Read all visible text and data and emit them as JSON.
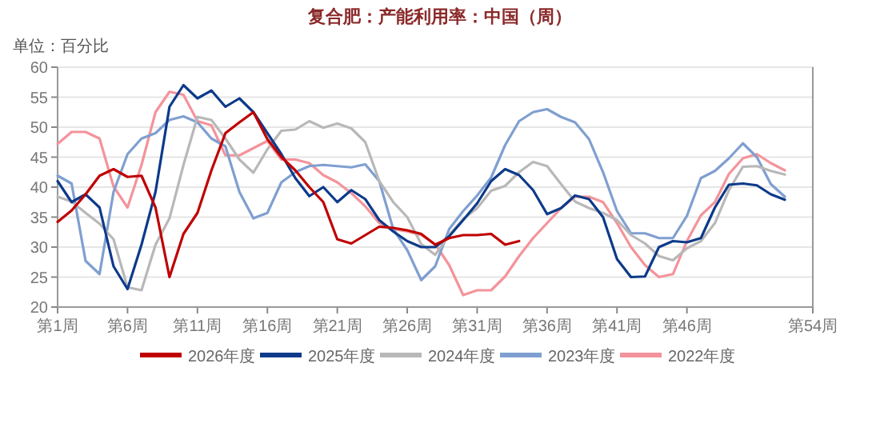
{
  "chart_data": {
    "type": "line",
    "title": "复合肥：产能利用率：中国（周）",
    "subtitle": "单位：百分比",
    "categories": [
      "第1周",
      null,
      null,
      null,
      null,
      "第6周",
      null,
      null,
      null,
      null,
      "第11周",
      null,
      null,
      null,
      null,
      "第16周",
      null,
      null,
      null,
      null,
      "第21周",
      null,
      null,
      null,
      null,
      "第26周",
      null,
      null,
      null,
      null,
      "第31周",
      null,
      null,
      null,
      null,
      "第36周",
      null,
      null,
      null,
      null,
      "第41周",
      null,
      null,
      null,
      null,
      "第46周",
      null,
      null,
      null,
      null,
      null,
      null,
      null,
      null,
      "第54周"
    ],
    "ylim": [
      20,
      60
    ],
    "yticks": [
      20,
      25,
      30,
      35,
      40,
      45,
      50,
      55,
      60
    ],
    "grid": "y",
    "legend": "bottom",
    "series": [
      {
        "name": "2026年度",
        "color": "#c00000",
        "values": [
          34.2,
          36.1,
          38.8,
          41.9,
          43,
          41.7,
          41.9,
          36.6,
          25,
          32.2,
          35.7,
          42.8,
          49,
          50.8,
          52.5,
          48,
          45,
          42.8,
          40,
          37.5,
          31.3,
          30.6,
          32,
          33.4,
          33.2,
          32.8,
          32.2,
          30.4,
          31.5,
          32,
          32,
          32.2,
          30.4,
          31,
          null,
          null,
          null,
          null,
          null,
          null,
          null,
          null,
          null,
          null,
          null,
          null,
          null,
          null,
          null,
          null,
          null,
          null,
          null,
          null,
          null
        ]
      },
      {
        "name": "2025年度",
        "color": "#0d3a8a",
        "values": [
          41,
          37.5,
          38.8,
          36.6,
          26.8,
          23,
          30.4,
          39.2,
          53.4,
          57,
          54.8,
          56.1,
          53.4,
          54.8,
          52.5,
          49,
          45.5,
          41.5,
          38.5,
          40,
          37.5,
          39.5,
          38,
          34.5,
          32.6,
          31,
          30,
          30,
          31.8,
          34.5,
          37.3,
          41,
          43,
          42,
          39.5,
          35.5,
          36.5,
          38.6,
          38,
          35,
          28,
          25,
          25.1,
          30,
          31,
          30.8,
          31.5,
          36.6,
          40.4,
          40.6,
          40.3,
          38.8,
          37.9,
          null,
          null
        ]
      },
      {
        "name": "2024年度",
        "color": "#b8b8b8",
        "values": [
          38.4,
          37.6,
          35.7,
          33.9,
          31.3,
          23.3,
          22.8,
          30.4,
          34.8,
          43.7,
          51.7,
          51.2,
          48.1,
          44.6,
          42.4,
          46.3,
          49.4,
          49.6,
          51,
          49.9,
          50.6,
          49.8,
          47.5,
          41,
          37.5,
          35,
          30.5,
          28.7,
          32,
          34.7,
          36.5,
          39.4,
          40.2,
          42.5,
          44.2,
          43.5,
          40.5,
          37.6,
          36.5,
          35.7,
          34.5,
          32,
          30.6,
          28.5,
          27.8,
          29.8,
          31,
          34,
          39.5,
          43.4,
          43.5,
          42.7,
          42.1,
          null,
          null
        ]
      },
      {
        "name": "2023年度",
        "color": "#7f9fd0",
        "values": [
          41.9,
          40.6,
          27.7,
          25.5,
          39.2,
          45.5,
          48.1,
          49,
          51.2,
          51.8,
          50.8,
          48.1,
          46.8,
          39.2,
          34.8,
          35.7,
          40.8,
          42.5,
          43.5,
          43.7,
          43.5,
          43.3,
          43.8,
          41,
          33,
          29.5,
          24.5,
          26.8,
          33,
          36,
          38.6,
          41.6,
          47,
          51,
          52.5,
          53,
          51.7,
          50.8,
          48,
          42.5,
          36,
          32.3,
          32.3,
          31.5,
          31.5,
          35.2,
          41.5,
          42.7,
          44.8,
          47.3,
          45,
          40.5,
          38.4,
          null,
          null
        ]
      },
      {
        "name": "2022年度",
        "color": "#f4939b",
        "values": [
          47.2,
          49.2,
          49.2,
          48.1,
          40.1,
          36.6,
          43.7,
          52.5,
          55.9,
          55.4,
          51,
          50.3,
          45.3,
          45.3,
          46.5,
          47.7,
          44.6,
          44.6,
          44,
          42,
          40.8,
          39,
          36.8,
          34,
          33,
          32.6,
          32,
          30.5,
          27,
          22,
          22.8,
          22.8,
          25.1,
          28.5,
          31.5,
          34,
          36.5,
          38.4,
          38.4,
          37.5,
          34,
          30,
          27,
          25,
          25.5,
          31,
          35.3,
          37.5,
          42.2,
          44.8,
          45.5,
          44,
          42.8,
          null,
          null
        ]
      }
    ]
  }
}
